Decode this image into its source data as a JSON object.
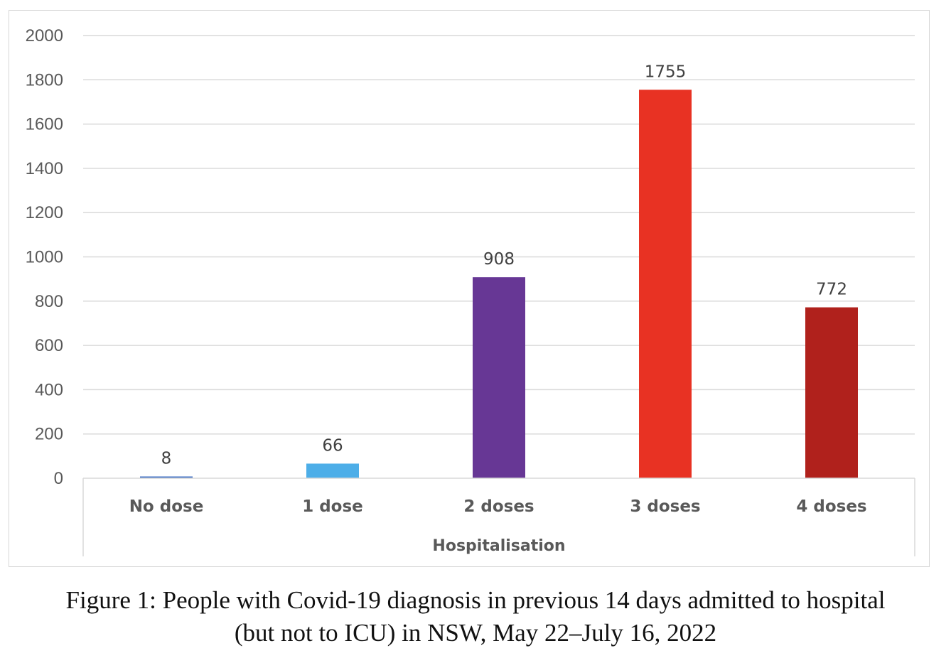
{
  "chart_data": {
    "type": "bar",
    "categories": [
      "No dose",
      "1 dose",
      "2 doses",
      "3 doses",
      "4 doses"
    ],
    "values": [
      8,
      66,
      908,
      1755,
      772
    ],
    "data_labels": [
      "8",
      "66",
      "908",
      "1755",
      "772"
    ],
    "bar_colors": [
      "#4472c4",
      "#4daee8",
      "#673795",
      "#e83223",
      "#b0211c"
    ],
    "xlabel": "Hospitalisation",
    "ylabel": "",
    "ylim": [
      0,
      2000
    ],
    "yticks": [
      "0",
      "200",
      "400",
      "600",
      "800",
      "1000",
      "1200",
      "1400",
      "1600",
      "1800",
      "2000"
    ],
    "grid": true,
    "legend": "none"
  },
  "caption": {
    "line1": "Figure 1: People with Covid-19 diagnosis in previous 14 days admitted to hospital",
    "line2": "(but not to ICU) in NSW, May 22–July 16, 2022"
  }
}
